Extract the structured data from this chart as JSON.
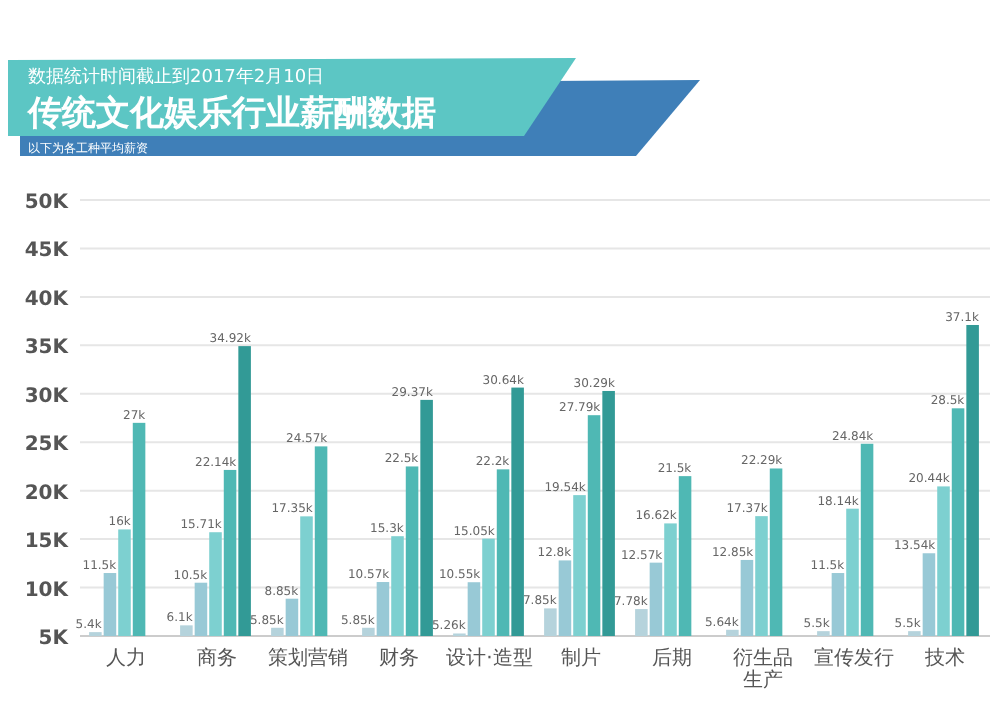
{
  "chart_data": {
    "type": "bar",
    "title": "传统文化娱乐行业薪酬数据",
    "subtitle": "数据统计时间截止到2017年2月10日",
    "annotations": [
      "以下为各工种平均薪资"
    ],
    "categories": [
      "人力",
      "商务",
      "策划营销",
      "财务",
      "设计·造型",
      "制片",
      "后期",
      "衍生品生产",
      "宣传发行",
      "技术"
    ],
    "ylim": [
      5,
      50
    ],
    "yticks": [
      {
        "value": 5,
        "label": "5K"
      },
      {
        "value": 10,
        "label": "10K"
      },
      {
        "value": 15,
        "label": "15K"
      },
      {
        "value": 20,
        "label": "20K"
      },
      {
        "value": 25,
        "label": "25K"
      },
      {
        "value": 30,
        "label": "30K"
      },
      {
        "value": 35,
        "label": "35K"
      },
      {
        "value": 40,
        "label": "40K"
      },
      {
        "value": 45,
        "label": "45K"
      },
      {
        "value": 50,
        "label": "50K"
      }
    ],
    "grid": "y",
    "series": [
      {
        "color": "#b5d3dc",
        "values": [
          5.4,
          6.1,
          5.85,
          5.85,
          5.26,
          7.85,
          7.78,
          5.64,
          5.5,
          5.5
        ],
        "value_labels": [
          "5.4k",
          "6.1k",
          "5.85k",
          "5.85k",
          "5.26k",
          "7.85k",
          "7.78k",
          "5.64k",
          "5.5k",
          "5.5k"
        ]
      },
      {
        "color": "#98c9d6",
        "values": [
          11.5,
          10.5,
          8.85,
          10.57,
          10.55,
          12.8,
          12.57,
          12.85,
          11.5,
          13.54
        ],
        "value_labels": [
          "11.5k",
          "10.5k",
          "8.85k",
          "10.57k",
          "10.55k",
          "12.8k",
          "12.57k",
          "12.85k",
          "11.5k",
          "13.54k"
        ]
      },
      {
        "color": "#7dd0d0",
        "values": [
          16,
          15.71,
          17.35,
          15.3,
          15.05,
          19.54,
          16.62,
          17.37,
          18.14,
          20.44
        ],
        "value_labels": [
          "16k",
          "15.71k",
          "17.35k",
          "15.3k",
          "15.05k",
          "19.54k",
          "16.62k",
          "17.37k",
          "18.14k",
          "20.44k"
        ]
      },
      {
        "color": "#4fb8b4",
        "values": [
          27,
          22.14,
          24.57,
          22.5,
          22.2,
          27.79,
          21.5,
          22.29,
          24.84,
          28.5
        ],
        "value_labels": [
          "27k",
          "22.14k",
          "24.57k",
          "22.5k",
          "22.2k",
          "27.79k",
          "21.5k",
          "22.29k",
          "24.84k",
          "28.5k"
        ]
      },
      {
        "color": "#329a96",
        "values": [
          null,
          34.92,
          null,
          29.37,
          30.64,
          30.29,
          null,
          null,
          null,
          37.1
        ],
        "value_labels": [
          null,
          "34.92k",
          null,
          "29.37k",
          "30.64k",
          "30.29k",
          null,
          null,
          null,
          "37.1k"
        ]
      }
    ]
  }
}
